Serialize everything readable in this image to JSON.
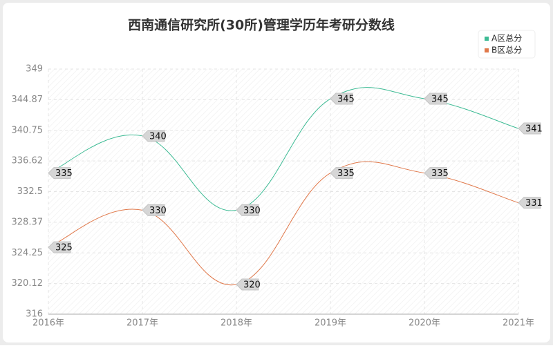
{
  "chart_data": {
    "type": "line",
    "title": "西南通信研究所(30所)管理学历年考研分数线",
    "categories": [
      "2016年",
      "2017年",
      "2018年",
      "2019年",
      "2020年",
      "2021年"
    ],
    "series": [
      {
        "name": "A区总分",
        "color": "#3dbb94",
        "values": [
          335,
          340,
          330,
          345,
          345,
          341
        ]
      },
      {
        "name": "B区总分",
        "color": "#e0784a",
        "values": [
          325,
          330,
          320,
          335,
          335,
          331
        ]
      }
    ],
    "ylim": [
      316,
      349
    ],
    "yticks": [
      316,
      320.12,
      324.25,
      328.37,
      332.5,
      336.62,
      340.75,
      344.87,
      349
    ],
    "grid": true,
    "legend": "top-right"
  }
}
